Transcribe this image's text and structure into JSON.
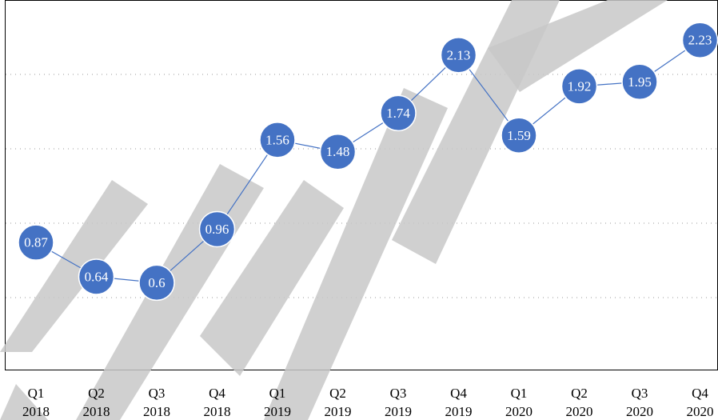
{
  "chart_data": {
    "type": "line",
    "categories": [
      [
        "Q1",
        "2018"
      ],
      [
        "Q2",
        "2018"
      ],
      [
        "Q3",
        "2018"
      ],
      [
        "Q4",
        "2018"
      ],
      [
        "Q1",
        "2019"
      ],
      [
        "Q2",
        "2019"
      ],
      [
        "Q3",
        "2019"
      ],
      [
        "Q4",
        "2019"
      ],
      [
        "Q1",
        "2020"
      ],
      [
        "Q2",
        "2020"
      ],
      [
        "Q3",
        "2020"
      ],
      [
        "Q4",
        "2020"
      ]
    ],
    "series": [
      {
        "values": [
          0.87,
          0.64,
          0.6,
          0.96,
          1.56,
          1.48,
          1.74,
          2.13,
          1.59,
          1.92,
          1.95,
          2.23
        ]
      }
    ],
    "ylim": [
      0,
      2.5
    ],
    "gridlines": [
      0.5,
      1.0,
      1.5,
      2.0
    ],
    "grid": true,
    "title": "",
    "xlabel": "",
    "ylabel": "",
    "colors": {
      "series": "#4472c4",
      "grid": "#9a9a9a"
    }
  },
  "watermark": {
    "text": "RETRACTED",
    "icon": "retracted-watermark-icon"
  }
}
